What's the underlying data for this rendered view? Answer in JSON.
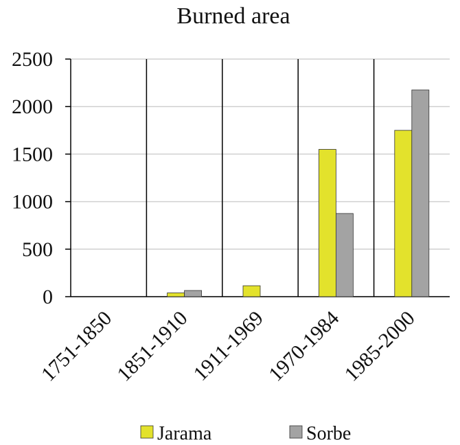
{
  "chart_data": {
    "type": "bar",
    "title": "Burned area",
    "categories": [
      "1751-1850",
      "1851-1910",
      "1911-1969",
      "1970-1984",
      "1985-2000"
    ],
    "series": [
      {
        "name": "Jarama",
        "color": "#e3e22c",
        "values": [
          0,
          40,
          115,
          1550,
          1750
        ]
      },
      {
        "name": "Sorbe",
        "color": "#a3a3a3",
        "values": [
          0,
          65,
          0,
          875,
          2175
        ]
      }
    ],
    "ylim": [
      0,
      2500
    ],
    "yticks": [
      0,
      500,
      1000,
      1500,
      2000,
      2500
    ],
    "grid": true,
    "legend": "bottom"
  }
}
